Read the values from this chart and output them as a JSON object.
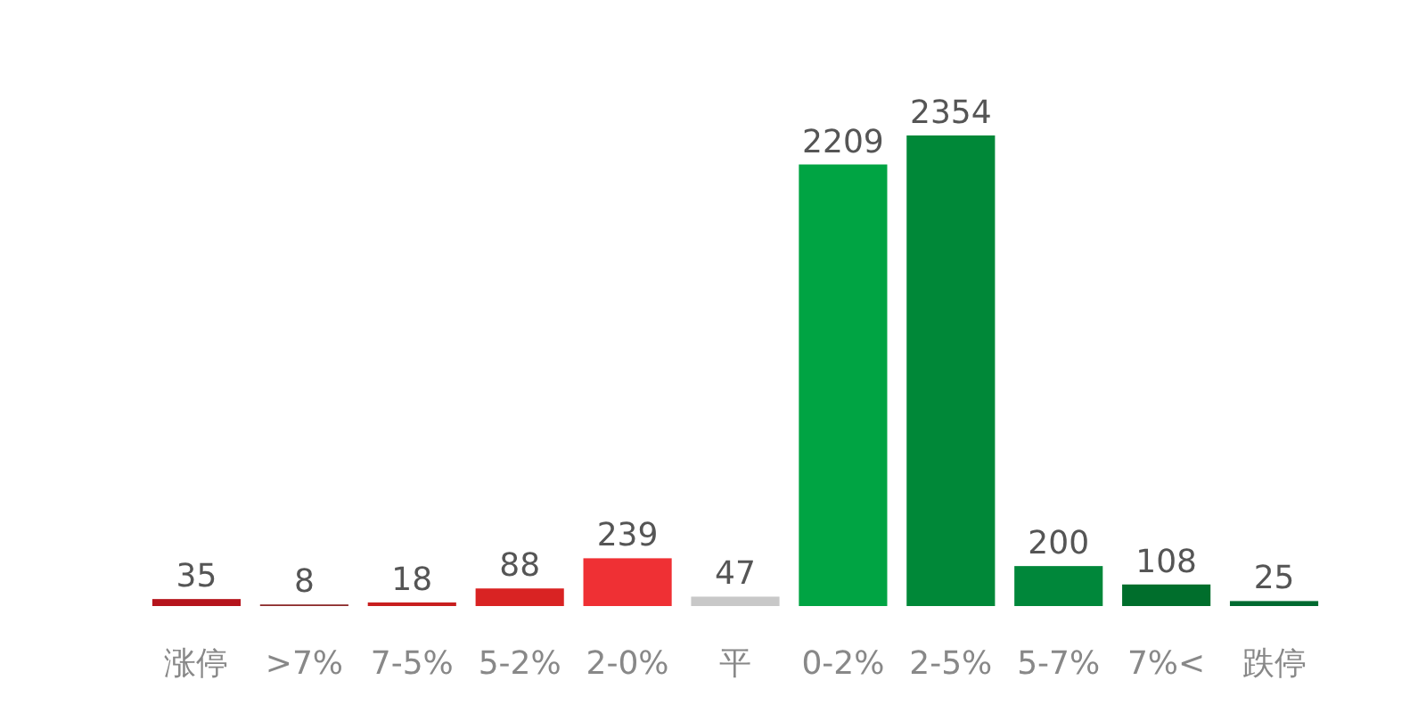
{
  "chart_data": {
    "type": "bar",
    "categories": [
      "涨停",
      ">7%",
      "7-5%",
      "5-2%",
      "2-0%",
      "平",
      "0-2%",
      "2-5%",
      "5-7%",
      "7%<",
      "跌停"
    ],
    "values": [
      35,
      8,
      18,
      88,
      239,
      47,
      2209,
      2354,
      200,
      108,
      25
    ],
    "colors": [
      "#b5141c",
      "#8c2a2a",
      "#c81e1e",
      "#d92323",
      "#ef3034",
      "#c8c8c8",
      "#00a443",
      "#008838",
      "#00873a",
      "#006e2c",
      "#006a30"
    ],
    "data_labels": true
  }
}
